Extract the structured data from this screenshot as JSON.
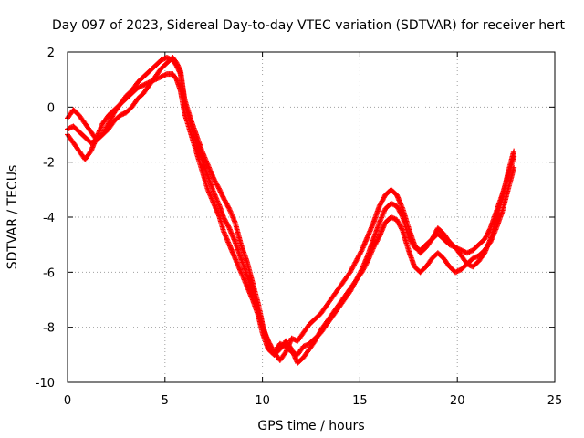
{
  "chart_data": {
    "type": "scatter",
    "title": "Day 097 of 2023, Sidereal Day-to-day VTEC variation (SDTVAR) for receiver hert",
    "xlabel": "GPS time / hours",
    "ylabel": "SDTVAR / TECUs",
    "xlim": [
      0,
      25
    ],
    "ylim": [
      -10,
      2
    ],
    "xticks": [
      "0",
      "5",
      "10",
      "15",
      "20",
      "25"
    ],
    "yticks": [
      "2",
      "0",
      "-2",
      "-4",
      "-6",
      "-8",
      "-10"
    ],
    "grid": true,
    "marker": "+",
    "color": "#ff0000",
    "series": [
      {
        "x": [
          0.0,
          0.3,
          0.6,
          0.9,
          1.2,
          1.5,
          1.8,
          2.1,
          2.4,
          2.7,
          3.0,
          3.3,
          3.6,
          3.9,
          4.2,
          4.5,
          4.8,
          5.1,
          5.4,
          5.6,
          5.8,
          6.0,
          6.3,
          6.6,
          6.9,
          7.2,
          7.5,
          7.8,
          8.0,
          8.3,
          8.6,
          8.9,
          9.2,
          9.5,
          9.8,
          10.0,
          10.3,
          10.6,
          10.9,
          11.2,
          11.5,
          11.8,
          12.1,
          12.4,
          12.7,
          13.0,
          13.3,
          13.6,
          13.9,
          14.2,
          14.5,
          14.8,
          15.1,
          15.4,
          15.7,
          16.0,
          16.3,
          16.6,
          16.9,
          17.2,
          17.5,
          17.8,
          18.1,
          18.4,
          18.7,
          19.0,
          19.3,
          19.6,
          19.9,
          20.2,
          20.5,
          20.8,
          21.1,
          21.4,
          21.7,
          22.0,
          22.3,
          22.6,
          22.9
        ],
        "y": [
          -0.4,
          -0.1,
          -0.3,
          -0.6,
          -0.9,
          -1.2,
          -1.0,
          -0.8,
          -0.5,
          -0.3,
          -0.2,
          0.0,
          0.3,
          0.5,
          0.8,
          1.1,
          1.4,
          1.6,
          1.8,
          1.6,
          1.3,
          0.3,
          -0.4,
          -1.0,
          -1.6,
          -2.1,
          -2.6,
          -3.0,
          -3.3,
          -3.7,
          -4.2,
          -5.0,
          -5.6,
          -6.4,
          -7.2,
          -7.9,
          -8.6,
          -8.9,
          -8.6,
          -8.7,
          -8.9,
          -9.0,
          -8.7,
          -8.6,
          -8.4,
          -8.2,
          -7.9,
          -7.6,
          -7.3,
          -7.0,
          -6.7,
          -6.3,
          -5.9,
          -5.4,
          -4.8,
          -4.2,
          -3.7,
          -3.5,
          -3.6,
          -4.0,
          -4.7,
          -5.1,
          -5.2,
          -5.0,
          -4.8,
          -4.6,
          -4.8,
          -5.0,
          -5.1,
          -5.2,
          -5.3,
          -5.2,
          -5.0,
          -4.8,
          -4.4,
          -3.8,
          -3.2,
          -2.5,
          -1.8
        ]
      },
      {
        "x": [
          0.0,
          0.3,
          0.6,
          0.9,
          1.2,
          1.5,
          1.8,
          2.1,
          2.4,
          2.7,
          3.0,
          3.3,
          3.6,
          3.9,
          4.2,
          4.5,
          4.8,
          5.1,
          5.4,
          5.6,
          5.8,
          6.0,
          6.3,
          6.6,
          6.9,
          7.2,
          7.5,
          7.8,
          8.0,
          8.3,
          8.6,
          8.9,
          9.2,
          9.5,
          9.8,
          10.0,
          10.3,
          10.6,
          10.9,
          11.2,
          11.5,
          11.8,
          12.1,
          12.4,
          12.7,
          13.0,
          13.3,
          13.6,
          13.9,
          14.2,
          14.5,
          14.8,
          15.1,
          15.4,
          15.7,
          16.0,
          16.3,
          16.6,
          16.9,
          17.2,
          17.5,
          17.8,
          18.1,
          18.4,
          18.7,
          19.0,
          19.3,
          19.6,
          19.9,
          20.2,
          20.5,
          20.8,
          21.1,
          21.4,
          21.7,
          22.0,
          22.3,
          22.6,
          22.9
        ],
        "y": [
          -1.0,
          -1.3,
          -1.6,
          -1.9,
          -1.6,
          -1.1,
          -0.6,
          -0.3,
          -0.1,
          0.1,
          0.3,
          0.5,
          0.7,
          0.8,
          0.9,
          1.0,
          1.1,
          1.2,
          1.2,
          1.0,
          0.6,
          -0.2,
          -0.9,
          -1.6,
          -2.3,
          -3.0,
          -3.5,
          -4.0,
          -4.5,
          -5.0,
          -5.5,
          -6.0,
          -6.5,
          -7.0,
          -7.6,
          -8.2,
          -8.8,
          -9.0,
          -8.8,
          -8.5,
          -8.8,
          -9.3,
          -9.1,
          -8.8,
          -8.5,
          -8.1,
          -7.8,
          -7.5,
          -7.2,
          -6.9,
          -6.6,
          -6.3,
          -6.0,
          -5.6,
          -5.1,
          -4.7,
          -4.2,
          -4.0,
          -4.1,
          -4.5,
          -5.2,
          -5.8,
          -6.0,
          -5.8,
          -5.5,
          -5.3,
          -5.5,
          -5.8,
          -6.0,
          -5.9,
          -5.7,
          -5.5,
          -5.4,
          -5.2,
          -4.9,
          -4.4,
          -3.8,
          -3.0,
          -2.2
        ]
      },
      {
        "x": [
          0.0,
          0.3,
          0.6,
          0.9,
          1.2,
          1.5,
          1.8,
          2.1,
          2.4,
          2.7,
          3.0,
          3.3,
          3.6,
          3.9,
          4.2,
          4.5,
          4.8,
          5.1,
          5.4,
          5.6,
          5.8,
          6.0,
          6.3,
          6.6,
          6.9,
          7.2,
          7.5,
          7.8,
          8.0,
          8.3,
          8.6,
          8.9,
          9.2,
          9.5,
          9.8,
          10.0,
          10.3,
          10.6,
          10.9,
          11.2,
          11.5,
          11.8,
          12.1,
          12.4,
          12.7,
          13.0,
          13.3,
          13.6,
          13.9,
          14.2,
          14.5,
          14.8,
          15.1,
          15.4,
          15.7,
          16.0,
          16.3,
          16.6,
          16.9,
          17.2,
          17.5,
          17.8,
          18.1,
          18.4,
          18.7,
          19.0,
          19.3,
          19.6,
          19.9,
          20.2,
          20.5,
          20.8,
          21.1,
          21.4,
          21.7,
          22.0,
          22.3,
          22.6,
          22.9
        ],
        "y": [
          -0.8,
          -0.7,
          -0.9,
          -1.1,
          -1.3,
          -1.2,
          -1.0,
          -0.6,
          -0.2,
          0.1,
          0.4,
          0.6,
          0.9,
          1.1,
          1.3,
          1.5,
          1.7,
          1.8,
          1.7,
          1.5,
          1.2,
          0.2,
          -0.6,
          -1.3,
          -1.9,
          -2.5,
          -3.1,
          -3.6,
          -4.0,
          -4.4,
          -4.9,
          -5.5,
          -6.1,
          -6.7,
          -7.4,
          -8.0,
          -8.5,
          -8.9,
          -9.2,
          -8.9,
          -8.4,
          -8.5,
          -8.2,
          -7.9,
          -7.7,
          -7.5,
          -7.2,
          -6.9,
          -6.6,
          -6.3,
          -6.0,
          -5.6,
          -5.2,
          -4.7,
          -4.2,
          -3.6,
          -3.2,
          -3.0,
          -3.2,
          -3.7,
          -4.4,
          -5.0,
          -5.3,
          -5.1,
          -4.8,
          -4.4,
          -4.6,
          -4.9,
          -5.1,
          -5.4,
          -5.7,
          -5.8,
          -5.6,
          -5.3,
          -4.8,
          -4.1,
          -3.3,
          -2.4,
          -1.6
        ]
      }
    ]
  }
}
